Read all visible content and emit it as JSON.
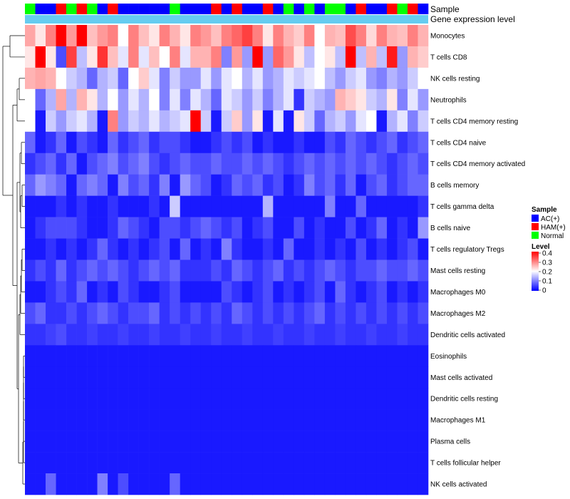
{
  "chart_data": {
    "type": "heatmap",
    "annotation_labels": [
      "Sample",
      "Gene expression level"
    ],
    "rows": [
      "Monocytes",
      "T cells CD8",
      "NK cells resting",
      "Neutrophils",
      "T cells CD4 memory resting",
      "T cells CD4 naive",
      "T cells CD4 memory activated",
      "B cells memory",
      "T cells gamma delta",
      "B cells naive",
      "T cells regulatory  Tregs",
      "Mast cells resting",
      "Macrophages M0",
      "Macrophages M2",
      "Dendritic cells activated",
      "Eosinophils",
      "Mast cells activated",
      "Dendritic cells resting",
      "Macrophages M1",
      "Plasma cells",
      "T cells follicular helper",
      "NK cells activated"
    ],
    "sample_groups": [
      "Normal",
      "AC(+)",
      "AC(+)",
      "HAM(+)",
      "Normal",
      "HAM(+)",
      "Normal",
      "AC(+)",
      "HAM(+)",
      "AC(+)",
      "AC(+)",
      "AC(+)",
      "AC(+)",
      "AC(+)",
      "Normal",
      "AC(+)",
      "AC(+)",
      "AC(+)",
      "HAM(+)",
      "AC(+)",
      "HAM(+)",
      "AC(+)",
      "AC(+)",
      "HAM(+)",
      "AC(+)",
      "Normal",
      "AC(+)",
      "Normal",
      "AC(+)",
      "Normal",
      "Normal",
      "AC(+)",
      "HAM(+)",
      "AC(+)",
      "AC(+)",
      "HAM(+)",
      "Normal",
      "HAM(+)",
      "AC(+)"
    ],
    "values": [
      [
        0.27,
        0.22,
        0.3,
        0.4,
        0.28,
        0.4,
        0.25,
        0.28,
        0.3,
        0.2,
        0.3,
        0.25,
        0.22,
        0.3,
        0.26,
        0.22,
        0.3,
        0.28,
        0.25,
        0.3,
        0.32,
        0.35,
        0.3,
        0.22,
        0.3,
        0.26,
        0.24,
        0.3,
        0.2,
        0.26,
        0.25,
        0.34,
        0.3,
        0.23,
        0.3,
        0.26,
        0.25,
        0.3,
        0.26
      ],
      [
        0.22,
        0.4,
        0.22,
        0.06,
        0.35,
        0.15,
        0.22,
        0.36,
        0.25,
        0.18,
        0.3,
        0.18,
        0.25,
        0.2,
        0.3,
        0.18,
        0.26,
        0.26,
        0.3,
        0.1,
        0.28,
        0.12,
        0.4,
        0.12,
        0.32,
        0.28,
        0.22,
        0.15,
        0.2,
        0.22,
        0.15,
        0.4,
        0.15,
        0.26,
        0.15,
        0.38,
        0.12,
        0.26,
        0.24
      ],
      [
        0.26,
        0.27,
        0.26,
        0.2,
        0.16,
        0.14,
        0.08,
        0.14,
        0.16,
        0.08,
        0.2,
        0.24,
        0.18,
        0.1,
        0.16,
        0.12,
        0.12,
        0.18,
        0.12,
        0.18,
        0.2,
        0.14,
        0.18,
        0.12,
        0.14,
        0.18,
        0.16,
        0.18,
        0.2,
        0.15,
        0.12,
        0.16,
        0.18,
        0.12,
        0.1,
        0.14,
        0.12,
        0.16,
        0.2
      ],
      [
        0.2,
        0.08,
        0.14,
        0.27,
        0.14,
        0.26,
        0.22,
        0.14,
        0.2,
        0.12,
        0.18,
        0.14,
        0.2,
        0.1,
        0.18,
        0.1,
        0.18,
        0.14,
        0.08,
        0.18,
        0.16,
        0.12,
        0.16,
        0.1,
        0.14,
        0.18,
        0.04,
        0.16,
        0.14,
        0.12,
        0.26,
        0.24,
        0.22,
        0.16,
        0.14,
        0.22,
        0.1,
        0.18,
        0.12
      ],
      [
        0.2,
        0.02,
        0.16,
        0.12,
        0.16,
        0.18,
        0.14,
        0.02,
        0.3,
        0.12,
        0.16,
        0.14,
        0.18,
        0.14,
        0.16,
        0.18,
        0.4,
        0.16,
        0.02,
        0.16,
        0.24,
        0.12,
        0.22,
        0.02,
        0.18,
        0.02,
        0.22,
        0.16,
        0.08,
        0.14,
        0.16,
        0.12,
        0.18,
        0.2,
        0.02,
        0.14,
        0.18,
        0.1,
        0.16
      ],
      [
        0.08,
        0.02,
        0.04,
        0.08,
        0.02,
        0.06,
        0.04,
        0.02,
        0.08,
        0.04,
        0.06,
        0.08,
        0.04,
        0.06,
        0.06,
        0.04,
        0.02,
        0.02,
        0.04,
        0.06,
        0.04,
        0.06,
        0.02,
        0.04,
        0.02,
        0.02,
        0.04,
        0.02,
        0.02,
        0.06,
        0.04,
        0.08,
        0.06,
        0.04,
        0.06,
        0.08,
        0.04,
        0.06,
        0.08
      ],
      [
        0.04,
        0.06,
        0.08,
        0.04,
        0.08,
        0.02,
        0.06,
        0.08,
        0.1,
        0.06,
        0.08,
        0.1,
        0.06,
        0.04,
        0.06,
        0.08,
        0.06,
        0.06,
        0.08,
        0.06,
        0.06,
        0.08,
        0.06,
        0.08,
        0.06,
        0.04,
        0.06,
        0.08,
        0.06,
        0.08,
        0.06,
        0.08,
        0.06,
        0.08,
        0.06,
        0.04,
        0.06,
        0.08,
        0.06
      ],
      [
        0.08,
        0.12,
        0.1,
        0.08,
        0.02,
        0.08,
        0.1,
        0.08,
        0.02,
        0.1,
        0.06,
        0.08,
        0.04,
        0.1,
        0.02,
        0.12,
        0.08,
        0.06,
        0.02,
        0.04,
        0.08,
        0.06,
        0.08,
        0.04,
        0.06,
        0.02,
        0.04,
        0.1,
        0.06,
        0.08,
        0.04,
        0.08,
        0.02,
        0.06,
        0.08,
        0.04,
        0.06,
        0.08,
        0.08
      ],
      [
        0.02,
        0.02,
        0.02,
        0.04,
        0.02,
        0.04,
        0.02,
        0.02,
        0.04,
        0.02,
        0.02,
        0.02,
        0.04,
        0.02,
        0.16,
        0.02,
        0.02,
        0.02,
        0.02,
        0.02,
        0.02,
        0.02,
        0.02,
        0.14,
        0.02,
        0.02,
        0.02,
        0.02,
        0.02,
        0.1,
        0.02,
        0.02,
        0.08,
        0.02,
        0.02,
        0.02,
        0.02,
        0.02,
        0.04
      ],
      [
        0.02,
        0.04,
        0.06,
        0.06,
        0.06,
        0.04,
        0.02,
        0.02,
        0.04,
        0.08,
        0.06,
        0.04,
        0.02,
        0.06,
        0.06,
        0.04,
        0.06,
        0.08,
        0.06,
        0.04,
        0.06,
        0.02,
        0.04,
        0.06,
        0.02,
        0.02,
        0.06,
        0.02,
        0.04,
        0.02,
        0.02,
        0.06,
        0.02,
        0.04,
        0.08,
        0.02,
        0.04,
        0.02,
        0.12
      ],
      [
        0.02,
        0.02,
        0.04,
        0.02,
        0.04,
        0.02,
        0.04,
        0.08,
        0.04,
        0.02,
        0.04,
        0.02,
        0.04,
        0.06,
        0.02,
        0.08,
        0.02,
        0.04,
        0.02,
        0.1,
        0.04,
        0.02,
        0.02,
        0.04,
        0.02,
        0.08,
        0.02,
        0.02,
        0.04,
        0.02,
        0.04,
        0.02,
        0.06,
        0.02,
        0.04,
        0.02,
        0.04,
        0.06,
        0.02
      ],
      [
        0.04,
        0.06,
        0.04,
        0.08,
        0.04,
        0.06,
        0.08,
        0.06,
        0.08,
        0.06,
        0.04,
        0.06,
        0.08,
        0.06,
        0.08,
        0.04,
        0.04,
        0.04,
        0.06,
        0.04,
        0.08,
        0.06,
        0.04,
        0.06,
        0.08,
        0.04,
        0.06,
        0.04,
        0.06,
        0.08,
        0.06,
        0.04,
        0.06,
        0.06,
        0.08,
        0.06,
        0.06,
        0.08,
        0.06
      ],
      [
        0.02,
        0.02,
        0.04,
        0.06,
        0.04,
        0.08,
        0.02,
        0.04,
        0.02,
        0.06,
        0.04,
        0.02,
        0.02,
        0.04,
        0.06,
        0.02,
        0.02,
        0.02,
        0.02,
        0.06,
        0.04,
        0.02,
        0.04,
        0.06,
        0.02,
        0.04,
        0.02,
        0.04,
        0.06,
        0.02,
        0.08,
        0.04,
        0.02,
        0.04,
        0.06,
        0.02,
        0.04,
        0.02,
        0.04
      ],
      [
        0.06,
        0.08,
        0.04,
        0.04,
        0.06,
        0.04,
        0.06,
        0.08,
        0.06,
        0.04,
        0.06,
        0.06,
        0.08,
        0.04,
        0.06,
        0.04,
        0.06,
        0.04,
        0.06,
        0.04,
        0.08,
        0.06,
        0.04,
        0.06,
        0.04,
        0.06,
        0.04,
        0.06,
        0.08,
        0.04,
        0.06,
        0.04,
        0.06,
        0.04,
        0.06,
        0.04,
        0.06,
        0.04,
        0.06
      ],
      [
        0.04,
        0.04,
        0.05,
        0.06,
        0.04,
        0.04,
        0.05,
        0.04,
        0.04,
        0.05,
        0.04,
        0.04,
        0.05,
        0.04,
        0.04,
        0.05,
        0.04,
        0.04,
        0.05,
        0.04,
        0.04,
        0.05,
        0.04,
        0.04,
        0.05,
        0.04,
        0.04,
        0.05,
        0.04,
        0.04,
        0.05,
        0.04,
        0.04,
        0.05,
        0.04,
        0.04,
        0.05,
        0.04,
        0.04
      ],
      [
        0.02,
        0.02,
        0.02,
        0.02,
        0.02,
        0.02,
        0.02,
        0.02,
        0.02,
        0.02,
        0.02,
        0.02,
        0.02,
        0.02,
        0.02,
        0.02,
        0.02,
        0.02,
        0.02,
        0.02,
        0.02,
        0.02,
        0.02,
        0.02,
        0.02,
        0.02,
        0.02,
        0.02,
        0.02,
        0.02,
        0.02,
        0.02,
        0.02,
        0.02,
        0.02,
        0.02,
        0.02,
        0.02,
        0.02
      ],
      [
        0.02,
        0.02,
        0.02,
        0.02,
        0.02,
        0.02,
        0.02,
        0.02,
        0.02,
        0.02,
        0.02,
        0.02,
        0.02,
        0.02,
        0.02,
        0.02,
        0.02,
        0.02,
        0.02,
        0.02,
        0.02,
        0.02,
        0.02,
        0.02,
        0.02,
        0.02,
        0.02,
        0.02,
        0.02,
        0.02,
        0.02,
        0.02,
        0.02,
        0.02,
        0.02,
        0.02,
        0.02,
        0.02,
        0.02
      ],
      [
        0.02,
        0.02,
        0.02,
        0.02,
        0.02,
        0.02,
        0.02,
        0.02,
        0.02,
        0.02,
        0.02,
        0.02,
        0.02,
        0.02,
        0.02,
        0.02,
        0.02,
        0.02,
        0.02,
        0.02,
        0.02,
        0.02,
        0.02,
        0.02,
        0.02,
        0.02,
        0.02,
        0.02,
        0.02,
        0.02,
        0.02,
        0.02,
        0.02,
        0.02,
        0.02,
        0.02,
        0.02,
        0.02,
        0.02
      ],
      [
        0.02,
        0.02,
        0.02,
        0.02,
        0.02,
        0.02,
        0.02,
        0.02,
        0.02,
        0.02,
        0.02,
        0.02,
        0.02,
        0.02,
        0.02,
        0.02,
        0.02,
        0.02,
        0.02,
        0.02,
        0.02,
        0.02,
        0.02,
        0.02,
        0.02,
        0.02,
        0.02,
        0.02,
        0.02,
        0.02,
        0.02,
        0.02,
        0.02,
        0.02,
        0.02,
        0.02,
        0.02,
        0.02,
        0.02
      ],
      [
        0.02,
        0.02,
        0.02,
        0.02,
        0.02,
        0.02,
        0.02,
        0.02,
        0.02,
        0.02,
        0.02,
        0.02,
        0.02,
        0.02,
        0.02,
        0.02,
        0.02,
        0.02,
        0.02,
        0.02,
        0.02,
        0.02,
        0.02,
        0.02,
        0.02,
        0.02,
        0.02,
        0.02,
        0.02,
        0.02,
        0.02,
        0.02,
        0.02,
        0.02,
        0.02,
        0.02,
        0.02,
        0.02,
        0.02
      ],
      [
        0.02,
        0.02,
        0.02,
        0.02,
        0.02,
        0.02,
        0.02,
        0.02,
        0.02,
        0.02,
        0.02,
        0.02,
        0.02,
        0.02,
        0.02,
        0.02,
        0.02,
        0.02,
        0.02,
        0.02,
        0.02,
        0.02,
        0.02,
        0.02,
        0.02,
        0.02,
        0.02,
        0.02,
        0.02,
        0.02,
        0.02,
        0.02,
        0.02,
        0.02,
        0.02,
        0.02,
        0.02,
        0.02,
        0.02
      ],
      [
        0.02,
        0.02,
        0.08,
        0.02,
        0.02,
        0.02,
        0.02,
        0.1,
        0.02,
        0.06,
        0.02,
        0.02,
        0.02,
        0.02,
        0.08,
        0.02,
        0.02,
        0.02,
        0.02,
        0.02,
        0.02,
        0.02,
        0.02,
        0.02,
        0.02,
        0.02,
        0.02,
        0.02,
        0.02,
        0.02,
        0.02,
        0.02,
        0.02,
        0.02,
        0.02,
        0.02,
        0.02,
        0.02,
        0.02
      ]
    ],
    "legend_sample": {
      "title": "Sample",
      "entries": [
        {
          "label": "AC(+)",
          "color": "#0000ff"
        },
        {
          "label": "HAM(+)",
          "color": "#ff0000"
        },
        {
          "label": "Normal",
          "color": "#00ff00"
        }
      ]
    },
    "legend_level": {
      "title": "Level",
      "ticks": [
        "0.4",
        "0.3",
        "0.2",
        "0.1",
        "0"
      ],
      "range": [
        0,
        0.4
      ],
      "colors": {
        "low": "#0000ff",
        "mid": "#ffffff",
        "high": "#ff0000"
      }
    },
    "gene_expression_color": "#66ccf0"
  }
}
